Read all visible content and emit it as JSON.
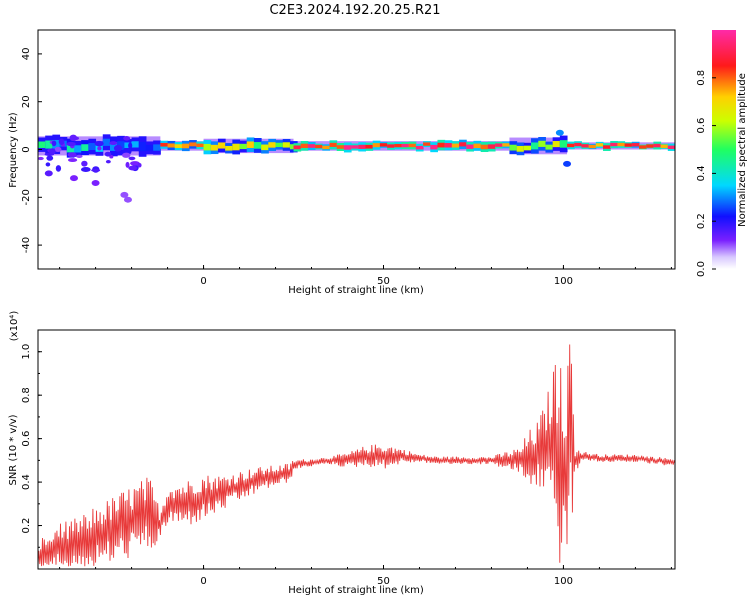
{
  "title": "C2E3.2024.192.20.25.R21",
  "colors": {
    "signal": "#e83a3a",
    "frame": "#000000",
    "background": "#ffffff"
  },
  "chart_data": [
    {
      "type": "heatmap",
      "xlabel": "Height of straight line (km)",
      "ylabel": "Frequency (Hz)",
      "xlim": [
        -46,
        131
      ],
      "ylim": [
        -50,
        50
      ],
      "xticks": [
        "0",
        "50",
        "100"
      ],
      "yticks": [
        "40",
        "20",
        "0",
        "-20",
        "-40"
      ],
      "colorbar": {
        "label": "Normalized spectral amplitude",
        "range": [
          0,
          1
        ],
        "ticks": [
          "0.0",
          "0.2",
          "0.4",
          "0.6",
          "0.8"
        ],
        "colormap": "rainbow (violet to magenta)"
      },
      "ridge_center_hz": 1.5,
      "ridge_segments": [
        {
          "x": [
            -46,
            -12
          ],
          "amplitude": 0.35,
          "spread_hz": 4
        },
        {
          "x": [
            -12,
            0
          ],
          "amplitude": 0.75,
          "spread_hz": 2
        },
        {
          "x": [
            0,
            25
          ],
          "amplitude": 0.6,
          "spread_hz": 3
        },
        {
          "x": [
            25,
            85
          ],
          "amplitude": 0.85,
          "spread_hz": 2
        },
        {
          "x": [
            85,
            101
          ],
          "amplitude": 0.55,
          "spread_hz": 3.5
        },
        {
          "x": [
            101,
            131
          ],
          "amplitude": 0.85,
          "spread_hz": 1.5
        }
      ],
      "blobs": [
        {
          "x": -43,
          "y": -10,
          "amplitude": 0.15
        },
        {
          "x": -36,
          "y": -12,
          "amplitude": 0.12
        },
        {
          "x": -30,
          "y": -14,
          "amplitude": 0.12
        },
        {
          "x": -22,
          "y": -19,
          "amplitude": 0.1
        },
        {
          "x": -21,
          "y": -21,
          "amplitude": 0.1
        },
        {
          "x": 99,
          "y": 7,
          "amplitude": 0.3
        },
        {
          "x": 101,
          "y": -6,
          "amplitude": 0.25
        }
      ]
    },
    {
      "type": "line",
      "xlabel": "Height of straight line (km)",
      "ylabel": "SNR (10 * v/v)",
      "y_multiplier": "(x10⁴)",
      "xlim": [
        -46,
        131
      ],
      "ylim": [
        0,
        1.1
      ],
      "xticks": [
        "0",
        "50",
        "100"
      ],
      "yticks": [
        "0.2",
        "0.4",
        "0.6",
        "0.8",
        "1.0"
      ],
      "series": [
        {
          "color": "#e83a3a",
          "x": [
            -46,
            -40,
            -35,
            -30,
            -25,
            -20,
            -15,
            -12,
            -10,
            -5,
            0,
            5,
            10,
            15,
            20,
            24,
            25,
            30,
            35,
            40,
            45,
            50,
            55,
            60,
            65,
            70,
            75,
            80,
            85,
            88,
            90,
            93,
            95,
            97,
            98,
            99,
            100,
            101,
            102,
            103,
            105,
            110,
            115,
            120,
            125,
            131
          ],
          "y": [
            0.05,
            0.1,
            0.12,
            0.15,
            0.18,
            0.22,
            0.25,
            0.2,
            0.3,
            0.3,
            0.33,
            0.35,
            0.38,
            0.41,
            0.43,
            0.44,
            0.48,
            0.49,
            0.5,
            0.5,
            0.52,
            0.52,
            0.52,
            0.51,
            0.5,
            0.5,
            0.5,
            0.5,
            0.5,
            0.5,
            0.5,
            0.53,
            0.56,
            0.6,
            0.55,
            0.5,
            0.45,
            0.42,
            0.65,
            0.5,
            0.52,
            0.51,
            0.51,
            0.51,
            0.5,
            0.49
          ],
          "noise_amplitude": [
            0.07,
            0.09,
            0.1,
            0.12,
            0.13,
            0.14,
            0.15,
            0.06,
            0.08,
            0.09,
            0.09,
            0.07,
            0.06,
            0.05,
            0.04,
            0.04,
            0.02,
            0.015,
            0.015,
            0.03,
            0.04,
            0.05,
            0.03,
            0.015,
            0.015,
            0.015,
            0.015,
            0.015,
            0.04,
            0.05,
            0.11,
            0.13,
            0.18,
            0.25,
            0.4,
            0.45,
            0.45,
            0.45,
            0.5,
            0.06,
            0.02,
            0.015,
            0.015,
            0.015,
            0.015,
            0.015
          ]
        }
      ]
    }
  ]
}
